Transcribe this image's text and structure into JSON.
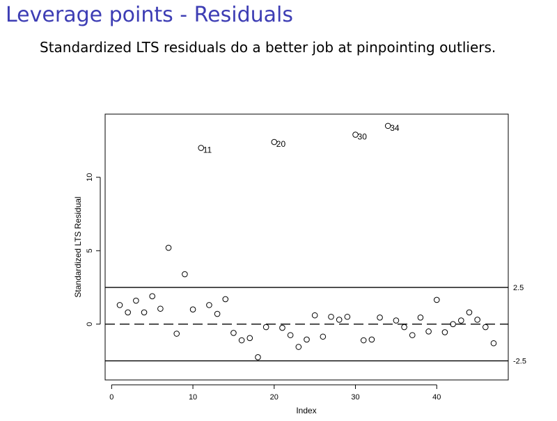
{
  "slide": {
    "title": "Leverage points - Residuals",
    "subtitle": "Standardized LTS residuals do a better job at pinpointing outliers."
  },
  "colors": {
    "title": "#3d3db4",
    "ink": "#000000"
  },
  "chart_data": {
    "type": "scatter",
    "title": "",
    "xlabel": "Index",
    "ylabel": "Standardized LTS Residual",
    "xlim": [
      -0.8,
      48.8
    ],
    "ylim": [
      -3.8,
      14.3
    ],
    "xticks": [
      0,
      10,
      20,
      30,
      40
    ],
    "yticks": [
      0,
      5,
      10
    ],
    "grid": false,
    "marker": "open-circle",
    "hlines": [
      {
        "y": 2.5,
        "style": "solid",
        "label": "2.5"
      },
      {
        "y": -2.5,
        "style": "solid",
        "label": "-2.5"
      },
      {
        "y": 0,
        "style": "dashed",
        "label": ""
      }
    ],
    "x": [
      1,
      2,
      3,
      4,
      5,
      6,
      7,
      8,
      9,
      10,
      11,
      12,
      13,
      14,
      15,
      16,
      17,
      18,
      19,
      20,
      21,
      22,
      23,
      24,
      25,
      26,
      27,
      28,
      29,
      30,
      31,
      32,
      33,
      34,
      35,
      36,
      37,
      38,
      39,
      40,
      41,
      42,
      43,
      44,
      45,
      46,
      47
    ],
    "y": [
      1.3,
      0.8,
      1.6,
      0.8,
      1.9,
      1.05,
      5.2,
      -0.65,
      3.4,
      1.0,
      12.0,
      1.3,
      0.7,
      1.7,
      -0.6,
      -1.1,
      -0.95,
      -2.25,
      -0.2,
      12.4,
      -0.25,
      -0.75,
      -1.55,
      -1.05,
      0.6,
      -0.85,
      0.5,
      0.3,
      0.5,
      12.9,
      -1.1,
      -1.05,
      0.45,
      13.5,
      0.25,
      -0.2,
      -0.75,
      0.45,
      -0.5,
      1.65,
      -0.55,
      0.0,
      0.25,
      0.8,
      0.3,
      -0.2,
      -1.3
    ],
    "point_labels": [
      {
        "index": 11,
        "text": "11"
      },
      {
        "index": 20,
        "text": "20"
      },
      {
        "index": 30,
        "text": "30"
      },
      {
        "index": 34,
        "text": "34"
      }
    ]
  }
}
